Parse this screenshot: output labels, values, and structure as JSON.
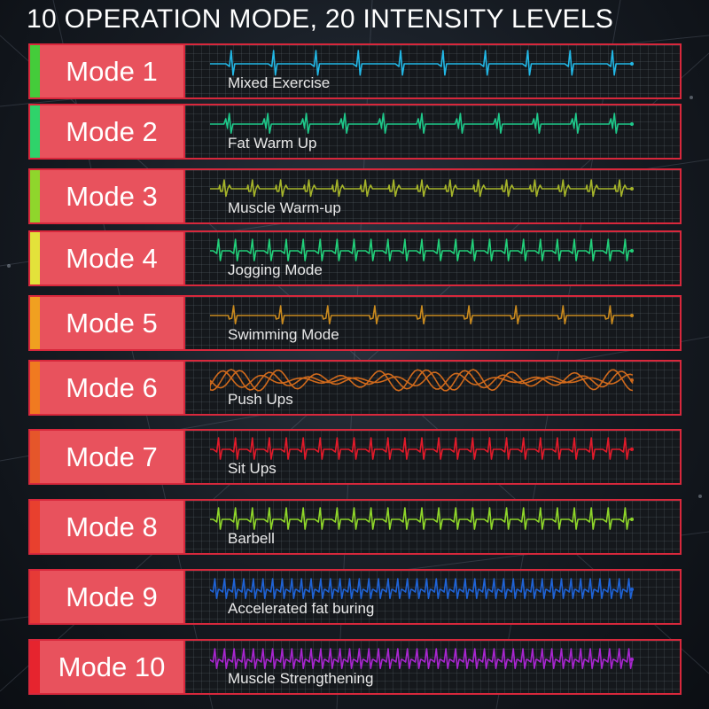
{
  "headline": "10 OPERATION MODE, 20 INTENSITY LEVELS",
  "modes": [
    {
      "label": "Mode 1",
      "name": "Mixed Exercise",
      "accent": "#44cc3a",
      "wave_color": "#22b8e6",
      "icon": "single-spike-heartbeat"
    },
    {
      "label": "Mode 2",
      "name": "Fat Warm Up",
      "accent": "#2fd36a",
      "wave_color": "#1ec98a",
      "icon": "double-spike-heartbeat"
    },
    {
      "label": "Mode 3",
      "name": "Muscle Warm-up",
      "accent": "#8fd62c",
      "wave_color": "#a6b52a",
      "icon": "complex-heartbeat"
    },
    {
      "label": "Mode 4",
      "name": "Jogging Mode",
      "accent": "#e3e23a",
      "wave_color": "#22d07a",
      "icon": "dense-heartbeat"
    },
    {
      "label": "Mode 5",
      "name": "Swimming Mode",
      "accent": "#f0a020",
      "wave_color": "#c98a1e",
      "icon": "sparse-heartbeat"
    },
    {
      "label": "Mode 6",
      "name": "Push Ups",
      "accent": "#f07a20",
      "wave_color": "#d06a1c",
      "icon": "sine-bundle-wave"
    },
    {
      "label": "Mode 7",
      "name": "Sit Ups",
      "accent": "#e5562a",
      "wave_color": "#e21a2a",
      "icon": "dense-heartbeat"
    },
    {
      "label": "Mode 8",
      "name": "Barbell",
      "accent": "#e8402e",
      "wave_color": "#8fd62a",
      "icon": "dense-heartbeat"
    },
    {
      "label": "Mode 9",
      "name": "Accelerated fat buring",
      "accent": "#e63a36",
      "wave_color": "#1f63d6",
      "icon": "very-dense-heartbeat"
    },
    {
      "label": "Mode 10",
      "name": "Muscle Strengthening",
      "accent": "#e6242e",
      "wave_color": "#a826d0",
      "icon": "very-dense-heartbeat"
    }
  ]
}
